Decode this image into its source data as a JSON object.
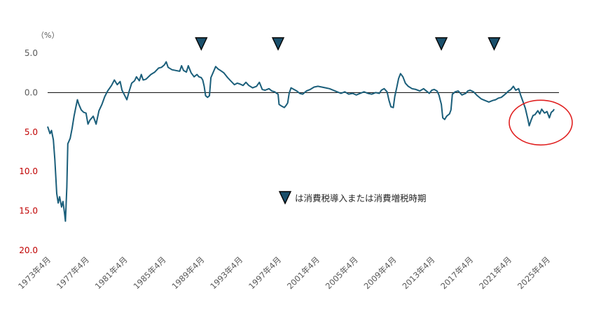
{
  "chart_data": {
    "type": "line",
    "title": "",
    "xlabel": "",
    "ylabel": "",
    "unit_label": "（%）",
    "y_inverted": true,
    "ylim": [
      -5,
      20
    ],
    "y_ticks": [
      {
        "value": -5,
        "label": "5.0"
      },
      {
        "value": 0,
        "label": "0.0"
      },
      {
        "value": 5,
        "label": "5.0"
      },
      {
        "value": 10,
        "label": "10.0"
      },
      {
        "value": 15,
        "label": "15.0"
      },
      {
        "value": 20,
        "label": "20.0"
      }
    ],
    "xlim": [
      1973.25,
      2026.5
    ],
    "x_ticks": [
      {
        "value": 1973.25,
        "label": "1973年4月"
      },
      {
        "value": 1977.25,
        "label": "1977年4月"
      },
      {
        "value": 1981.25,
        "label": "1981年4月"
      },
      {
        "value": 1985.25,
        "label": "1985年4月"
      },
      {
        "value": 1989.25,
        "label": "1989年4月"
      },
      {
        "value": 1993.25,
        "label": "1993年4月"
      },
      {
        "value": 1997.25,
        "label": "1997年4月"
      },
      {
        "value": 2001.25,
        "label": "2001年4月"
      },
      {
        "value": 2005.25,
        "label": "2005年4月"
      },
      {
        "value": 2009.25,
        "label": "2009年4月"
      },
      {
        "value": 2013.25,
        "label": "2013年4月"
      },
      {
        "value": 2017.25,
        "label": "2017年4月"
      },
      {
        "value": 2021.25,
        "label": "2021年4月"
      },
      {
        "value": 2025.25,
        "label": "2025年4月"
      }
    ],
    "series": [
      {
        "color": "#1a5e7a",
        "points": [
          [
            1973.25,
            4.3
          ],
          [
            1973.5,
            5.2
          ],
          [
            1973.65,
            4.8
          ],
          [
            1973.85,
            6.0
          ],
          [
            1974.0,
            8.5
          ],
          [
            1974.2,
            12.8
          ],
          [
            1974.35,
            14.0
          ],
          [
            1974.5,
            13.2
          ],
          [
            1974.7,
            14.5
          ],
          [
            1974.85,
            13.8
          ],
          [
            1975.0,
            15.2
          ],
          [
            1975.1,
            16.3
          ],
          [
            1975.25,
            12.0
          ],
          [
            1975.35,
            6.5
          ],
          [
            1975.6,
            5.8
          ],
          [
            1975.8,
            4.5
          ],
          [
            1976.0,
            3.0
          ],
          [
            1976.2,
            1.8
          ],
          [
            1976.35,
            0.9
          ],
          [
            1976.5,
            1.5
          ],
          [
            1976.75,
            2.2
          ],
          [
            1977.0,
            2.5
          ],
          [
            1977.25,
            2.6
          ],
          [
            1977.45,
            4.0
          ],
          [
            1977.65,
            3.5
          ],
          [
            1978.0,
            3.0
          ],
          [
            1978.3,
            4.0
          ],
          [
            1978.6,
            2.3
          ],
          [
            1978.9,
            1.5
          ],
          [
            1979.2,
            0.5
          ],
          [
            1979.5,
            -0.2
          ],
          [
            1979.9,
            -0.9
          ],
          [
            1980.2,
            -1.6
          ],
          [
            1980.5,
            -1.0
          ],
          [
            1980.8,
            -1.4
          ],
          [
            1981.0,
            -0.3
          ],
          [
            1981.25,
            0.3
          ],
          [
            1981.5,
            0.9
          ],
          [
            1981.75,
            -0.2
          ],
          [
            1982.0,
            -1.2
          ],
          [
            1982.3,
            -1.5
          ],
          [
            1982.5,
            -2.0
          ],
          [
            1982.8,
            -1.5
          ],
          [
            1983.0,
            -2.3
          ],
          [
            1983.2,
            -1.6
          ],
          [
            1983.5,
            -1.7
          ],
          [
            1984.0,
            -2.3
          ],
          [
            1984.4,
            -2.6
          ],
          [
            1984.8,
            -3.1
          ],
          [
            1985.1,
            -3.2
          ],
          [
            1985.4,
            -3.5
          ],
          [
            1985.6,
            -3.9
          ],
          [
            1985.8,
            -3.2
          ],
          [
            1986.2,
            -2.9
          ],
          [
            1986.6,
            -2.8
          ],
          [
            1987.0,
            -2.7
          ],
          [
            1987.2,
            -3.4
          ],
          [
            1987.4,
            -2.8
          ],
          [
            1987.7,
            -2.6
          ],
          [
            1987.9,
            -3.4
          ],
          [
            1988.2,
            -2.5
          ],
          [
            1988.5,
            -2.0
          ],
          [
            1988.8,
            -2.3
          ],
          [
            1989.0,
            -2.0
          ],
          [
            1989.25,
            -1.9
          ],
          [
            1989.4,
            -1.6
          ],
          [
            1989.55,
            -0.8
          ],
          [
            1989.7,
            0.4
          ],
          [
            1989.9,
            0.6
          ],
          [
            1990.1,
            0.4
          ],
          [
            1990.25,
            -1.9
          ],
          [
            1990.5,
            -2.6
          ],
          [
            1990.75,
            -3.3
          ],
          [
            1991.0,
            -3.0
          ],
          [
            1991.25,
            -2.8
          ],
          [
            1991.6,
            -2.5
          ],
          [
            1992.0,
            -1.9
          ],
          [
            1992.3,
            -1.5
          ],
          [
            1992.7,
            -1.0
          ],
          [
            1993.0,
            -1.2
          ],
          [
            1993.25,
            -1.1
          ],
          [
            1993.6,
            -0.9
          ],
          [
            1993.9,
            -1.3
          ],
          [
            1994.2,
            -0.9
          ],
          [
            1994.6,
            -0.6
          ],
          [
            1995.0,
            -0.8
          ],
          [
            1995.3,
            -1.3
          ],
          [
            1995.6,
            -0.4
          ],
          [
            1995.9,
            -0.3
          ],
          [
            1996.3,
            -0.5
          ],
          [
            1996.6,
            -0.2
          ],
          [
            1996.9,
            -0.1
          ],
          [
            1997.1,
            0.1
          ],
          [
            1997.25,
            0.2
          ],
          [
            1997.35,
            1.5
          ],
          [
            1997.6,
            1.7
          ],
          [
            1997.9,
            1.9
          ],
          [
            1998.1,
            1.6
          ],
          [
            1998.25,
            1.3
          ],
          [
            1998.4,
            0.1
          ],
          [
            1998.6,
            -0.6
          ],
          [
            1998.9,
            -0.4
          ],
          [
            1999.2,
            -0.2
          ],
          [
            1999.5,
            0.1
          ],
          [
            1999.8,
            0.2
          ],
          [
            2000.2,
            -0.2
          ],
          [
            2000.6,
            -0.4
          ],
          [
            2001.0,
            -0.7
          ],
          [
            2001.4,
            -0.8
          ],
          [
            2001.8,
            -0.7
          ],
          [
            2002.2,
            -0.6
          ],
          [
            2002.6,
            -0.5
          ],
          [
            2003.0,
            -0.3
          ],
          [
            2003.4,
            -0.1
          ],
          [
            2003.8,
            0.1
          ],
          [
            2004.2,
            -0.1
          ],
          [
            2004.6,
            0.2
          ],
          [
            2005.0,
            0.1
          ],
          [
            2005.4,
            0.3
          ],
          [
            2005.8,
            0.1
          ],
          [
            2006.2,
            -0.1
          ],
          [
            2006.6,
            0.1
          ],
          [
            2007.0,
            0.2
          ],
          [
            2007.4,
            0.0
          ],
          [
            2007.8,
            0.1
          ],
          [
            2008.0,
            -0.3
          ],
          [
            2008.3,
            -0.5
          ],
          [
            2008.6,
            -0.1
          ],
          [
            2008.8,
            1.0
          ],
          [
            2009.0,
            1.8
          ],
          [
            2009.25,
            1.9
          ],
          [
            2009.4,
            0.5
          ],
          [
            2009.6,
            -0.6
          ],
          [
            2009.8,
            -1.8
          ],
          [
            2010.0,
            -2.4
          ],
          [
            2010.25,
            -2.0
          ],
          [
            2010.5,
            -1.2
          ],
          [
            2010.8,
            -0.8
          ],
          [
            2011.2,
            -0.5
          ],
          [
            2011.6,
            -0.4
          ],
          [
            2012.0,
            -0.2
          ],
          [
            2012.4,
            -0.5
          ],
          [
            2012.8,
            -0.1
          ],
          [
            2013.0,
            0.1
          ],
          [
            2013.25,
            -0.3
          ],
          [
            2013.5,
            -0.4
          ],
          [
            2013.8,
            -0.2
          ],
          [
            2014.0,
            0.3
          ],
          [
            2014.25,
            1.5
          ],
          [
            2014.4,
            3.2
          ],
          [
            2014.6,
            3.4
          ],
          [
            2014.8,
            3.0
          ],
          [
            2015.1,
            2.7
          ],
          [
            2015.25,
            2.2
          ],
          [
            2015.4,
            0.2
          ],
          [
            2015.7,
            -0.1
          ],
          [
            2016.0,
            -0.2
          ],
          [
            2016.4,
            0.3
          ],
          [
            2016.8,
            0.1
          ],
          [
            2017.0,
            -0.2
          ],
          [
            2017.25,
            -0.3
          ],
          [
            2017.6,
            -0.1
          ],
          [
            2018.0,
            0.4
          ],
          [
            2018.4,
            0.8
          ],
          [
            2018.8,
            1.0
          ],
          [
            2019.2,
            1.2
          ],
          [
            2019.6,
            1.0
          ],
          [
            2019.9,
            0.9
          ],
          [
            2020.2,
            0.7
          ],
          [
            2020.5,
            0.6
          ],
          [
            2020.8,
            0.3
          ],
          [
            2021.0,
            0.1
          ],
          [
            2021.25,
            -0.2
          ],
          [
            2021.5,
            -0.4
          ],
          [
            2021.75,
            -0.8
          ],
          [
            2022.0,
            -0.3
          ],
          [
            2022.3,
            -0.5
          ],
          [
            2022.5,
            0.3
          ],
          [
            2022.8,
            1.3
          ],
          [
            2023.0,
            2.0
          ],
          [
            2023.25,
            3.3
          ],
          [
            2023.4,
            4.2
          ],
          [
            2023.6,
            3.5
          ],
          [
            2023.8,
            2.9
          ],
          [
            2024.0,
            2.8
          ],
          [
            2024.3,
            2.3
          ],
          [
            2024.5,
            2.7
          ],
          [
            2024.7,
            2.1
          ],
          [
            2025.0,
            2.6
          ],
          [
            2025.25,
            2.4
          ],
          [
            2025.5,
            3.2
          ],
          [
            2025.7,
            2.5
          ],
          [
            2025.9,
            2.3
          ],
          [
            2026.0,
            2.1
          ]
        ]
      }
    ],
    "markers": [
      1989.25,
      1997.25,
      2014.25,
      2019.75
    ],
    "marker_color": "#1a4f6b",
    "legend": {
      "text": "は消費税導入または消費増税時期"
    },
    "highlight": {
      "x": 2024.6,
      "y": 3.8,
      "color": "#e02020"
    },
    "grid": false
  }
}
